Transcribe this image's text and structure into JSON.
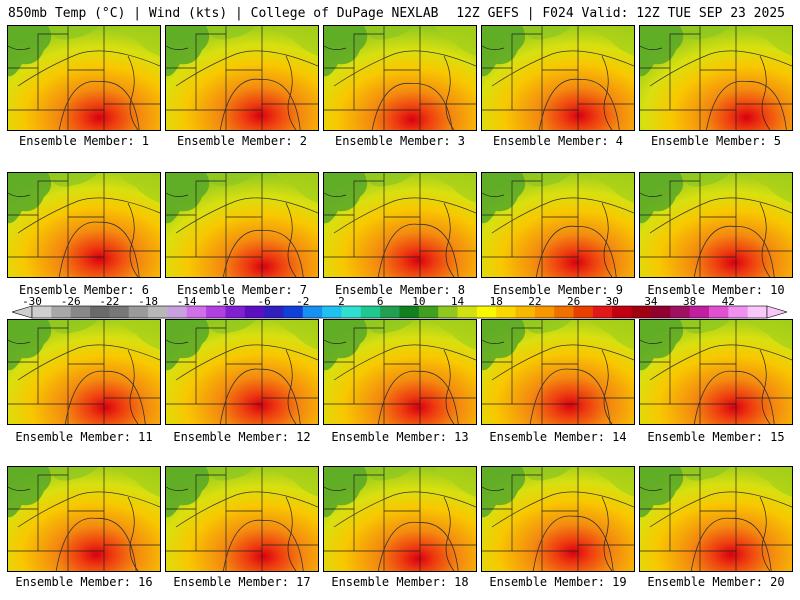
{
  "header": {
    "left_title": "850mb Temp (°C) | Wind (kts) | College of DuPage NEXLAB",
    "right_title": "12Z GEFS | F024 Valid: 12Z TUE SEP 23 2025"
  },
  "panels": [
    {
      "member": 1,
      "caption": "Ensemble Member: 1",
      "hot_center": [
        0.6,
        0.88
      ]
    },
    {
      "member": 2,
      "caption": "Ensemble Member: 2",
      "hot_center": [
        0.62,
        0.86
      ]
    },
    {
      "member": 3,
      "caption": "Ensemble Member: 3",
      "hot_center": [
        0.58,
        0.9
      ]
    },
    {
      "member": 4,
      "caption": "Ensemble Member: 4",
      "hot_center": [
        0.64,
        0.86
      ]
    },
    {
      "member": 5,
      "caption": "Ensemble Member: 5",
      "hot_center": [
        0.7,
        0.88
      ]
    },
    {
      "member": 6,
      "caption": "Ensemble Member: 6",
      "hot_center": [
        0.6,
        0.82
      ]
    },
    {
      "member": 7,
      "caption": "Ensemble Member: 7",
      "hot_center": [
        0.64,
        0.9
      ]
    },
    {
      "member": 8,
      "caption": "Ensemble Member: 8",
      "hot_center": [
        0.62,
        0.84
      ]
    },
    {
      "member": 9,
      "caption": "Ensemble Member: 9",
      "hot_center": [
        0.62,
        0.86
      ]
    },
    {
      "member": 10,
      "caption": "Ensemble Member: 10",
      "hot_center": [
        0.62,
        0.86
      ]
    },
    {
      "member": 11,
      "caption": "Ensemble Member: 11",
      "hot_center": [
        0.64,
        0.84
      ]
    },
    {
      "member": 12,
      "caption": "Ensemble Member: 12",
      "hot_center": [
        0.62,
        0.82
      ]
    },
    {
      "member": 13,
      "caption": "Ensemble Member: 13",
      "hot_center": [
        0.62,
        0.84
      ]
    },
    {
      "member": 14,
      "caption": "Ensemble Member: 14",
      "hot_center": [
        0.58,
        0.82
      ]
    },
    {
      "member": 15,
      "caption": "Ensemble Member: 15",
      "hot_center": [
        0.62,
        0.84
      ]
    },
    {
      "member": 16,
      "caption": "Ensemble Member: 16",
      "hot_center": [
        0.58,
        0.84
      ]
    },
    {
      "member": 17,
      "caption": "Ensemble Member: 17",
      "hot_center": [
        0.64,
        0.86
      ]
    },
    {
      "member": 18,
      "caption": "Ensemble Member: 18",
      "hot_center": [
        0.62,
        0.88
      ]
    },
    {
      "member": 19,
      "caption": "Ensemble Member: 19",
      "hot_center": [
        0.6,
        0.82
      ]
    },
    {
      "member": 20,
      "caption": "Ensemble Member: 20",
      "hot_center": [
        0.6,
        0.84
      ]
    }
  ],
  "colorbar": {
    "labels": [
      "-30",
      "-26",
      "-22",
      "-18",
      "-14",
      "-10",
      "-6",
      "-2",
      "2",
      "6",
      "10",
      "14",
      "18",
      "22",
      "26",
      "30",
      "34",
      "38",
      "42"
    ],
    "colors": [
      "#cfcfcf",
      "#a8a8a8",
      "#888888",
      "#6a6a6a",
      "#777777",
      "#9a9a9a",
      "#b8b8b8",
      "#c8a0e0",
      "#d070e8",
      "#b040e0",
      "#8020d0",
      "#5a10c0",
      "#3020c0",
      "#1040d8",
      "#1890f0",
      "#20c0f0",
      "#30e0d0",
      "#20c890",
      "#20a050",
      "#108020",
      "#40a020",
      "#90c820",
      "#d0e010",
      "#f8f800",
      "#f8d800",
      "#f8b800",
      "#f89800",
      "#f07000",
      "#e84000",
      "#e01818",
      "#c00010",
      "#a00010",
      "#900030",
      "#a01060",
      "#c020a0",
      "#e050d0",
      "#f090f0",
      "#f8c8f8"
    ]
  },
  "colors": {
    "background": "#ffffff",
    "border": "#000000"
  }
}
